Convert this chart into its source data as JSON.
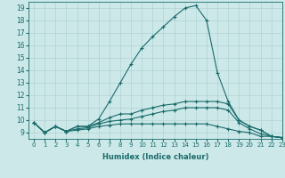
{
  "xlabel": "Humidex (Indice chaleur)",
  "ylabel": "",
  "background_color": "#cce8e8",
  "line_color": "#1a6b6b",
  "xlim": [
    -0.5,
    23
  ],
  "ylim": [
    8.5,
    19.5
  ],
  "xticks": [
    0,
    1,
    2,
    3,
    4,
    5,
    6,
    7,
    8,
    9,
    10,
    11,
    12,
    13,
    14,
    15,
    16,
    17,
    18,
    19,
    20,
    21,
    22,
    23
  ],
  "yticks": [
    9,
    10,
    11,
    12,
    13,
    14,
    15,
    16,
    17,
    18,
    19
  ],
  "series": [
    {
      "x": [
        0,
        1,
        2,
        3,
        4,
        5,
        6,
        7,
        8,
        9,
        10,
        11,
        12,
        13,
        14,
        15,
        16,
        17,
        18,
        19,
        20,
        21,
        22,
        23
      ],
      "y": [
        9.8,
        9.0,
        9.5,
        9.1,
        9.5,
        9.5,
        10.1,
        11.5,
        13.0,
        14.5,
        15.8,
        16.7,
        17.5,
        18.3,
        19.0,
        19.2,
        18.0,
        13.8,
        11.5,
        10.0,
        9.5,
        9.2,
        8.7,
        8.6
      ]
    },
    {
      "x": [
        0,
        1,
        2,
        3,
        4,
        5,
        6,
        7,
        8,
        9,
        10,
        11,
        12,
        13,
        14,
        15,
        16,
        17,
        18,
        19,
        20,
        21,
        22,
        23
      ],
      "y": [
        9.8,
        9.0,
        9.5,
        9.1,
        9.5,
        9.5,
        9.8,
        10.2,
        10.5,
        10.5,
        10.8,
        11.0,
        11.2,
        11.3,
        11.5,
        11.5,
        11.5,
        11.5,
        11.3,
        10.0,
        9.5,
        9.2,
        8.7,
        8.6
      ]
    },
    {
      "x": [
        0,
        1,
        2,
        3,
        4,
        5,
        6,
        7,
        8,
        9,
        10,
        11,
        12,
        13,
        14,
        15,
        16,
        17,
        18,
        19,
        20,
        21,
        22,
        23
      ],
      "y": [
        9.8,
        9.0,
        9.5,
        9.1,
        9.3,
        9.4,
        9.7,
        9.9,
        10.0,
        10.1,
        10.3,
        10.5,
        10.7,
        10.8,
        11.0,
        11.0,
        11.0,
        11.0,
        10.8,
        9.8,
        9.3,
        8.9,
        8.7,
        8.6
      ]
    },
    {
      "x": [
        0,
        1,
        2,
        3,
        4,
        5,
        6,
        7,
        8,
        9,
        10,
        11,
        12,
        13,
        14,
        15,
        16,
        17,
        18,
        19,
        20,
        21,
        22,
        23
      ],
      "y": [
        9.8,
        9.0,
        9.5,
        9.1,
        9.2,
        9.3,
        9.5,
        9.6,
        9.7,
        9.7,
        9.7,
        9.7,
        9.7,
        9.7,
        9.7,
        9.7,
        9.7,
        9.5,
        9.3,
        9.1,
        9.0,
        8.7,
        8.7,
        8.6
      ]
    }
  ]
}
